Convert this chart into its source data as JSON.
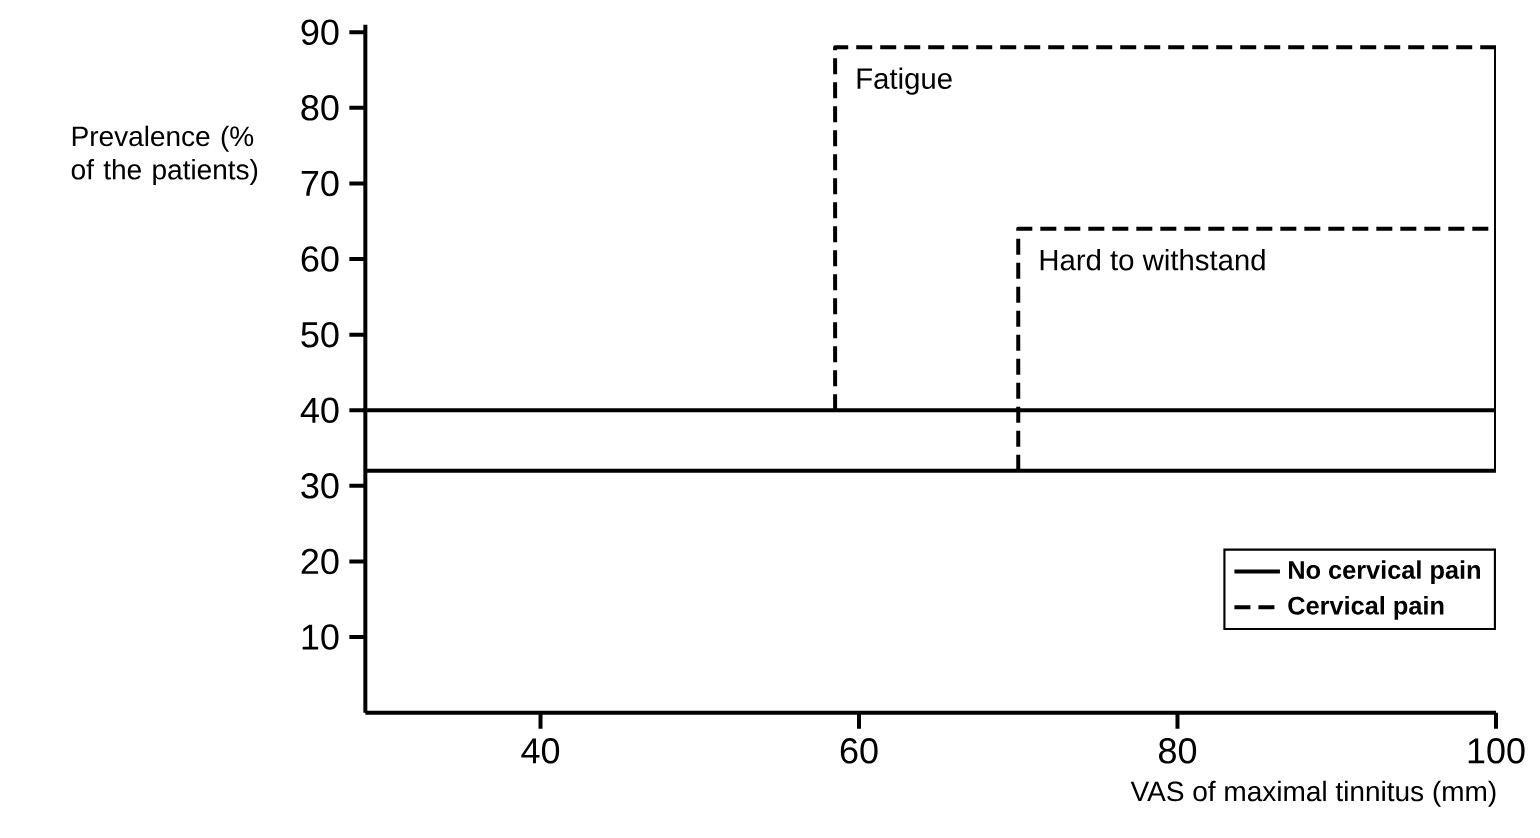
{
  "chart_data": {
    "type": "line",
    "xlabel": "VAS of maximal tinnitus (mm)",
    "ylabel": "Prevalence (% of the patients)",
    "xlim": [
      29,
      100
    ],
    "xticks": [
      40,
      60,
      80,
      100
    ],
    "ylim": [
      0,
      91
    ],
    "yticks": [
      10,
      20,
      30,
      40,
      50,
      60,
      70,
      80,
      90
    ],
    "grid": false,
    "legend": "bottom right",
    "marker": "none",
    "series": [
      {
        "name": "No cervical pain",
        "color": "#000000",
        "line_style": "solid",
        "x": [
          29,
          100,
          100
        ],
        "values": [
          40,
          40,
          88
        ]
      },
      {
        "name": "Cervical pain",
        "color": "#000000",
        "line_style": "dashed",
        "x": [
          58.5,
          58.5,
          100
        ],
        "values": [
          40,
          88,
          88
        ]
      },
      {
        "color": "#000000",
        "line_style": "solid",
        "x": [
          29,
          100,
          100
        ],
        "values": [
          32,
          32,
          64
        ]
      },
      {
        "color": "#000000",
        "line_style": "dashed",
        "x": [
          70,
          70,
          100
        ],
        "values": [
          32,
          64,
          64
        ]
      }
    ],
    "annotations": [
      "Fatigue",
      "Hard to withstand"
    ]
  }
}
